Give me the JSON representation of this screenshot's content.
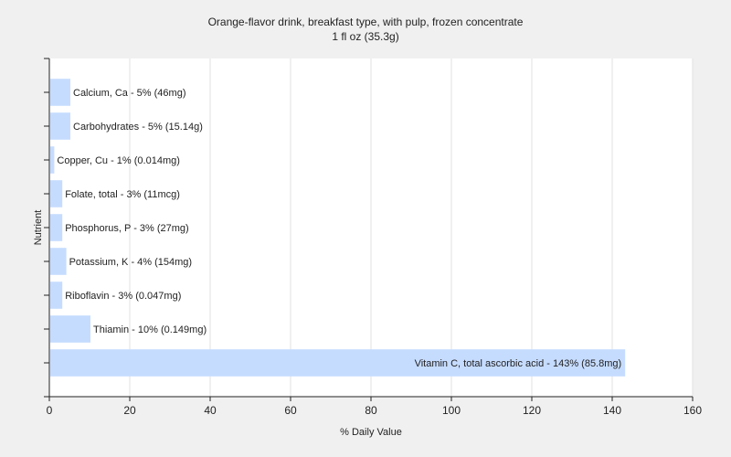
{
  "chart_data": {
    "type": "bar",
    "orientation": "horizontal",
    "title": "Orange-flavor drink, breakfast type, with pulp, frozen concentrate",
    "subtitle": "1 fl oz (35.3g)",
    "xlabel": "% Daily Value",
    "ylabel": "Nutrient",
    "xlim": [
      0,
      160
    ],
    "xticks": [
      0,
      20,
      40,
      60,
      80,
      100,
      120,
      140,
      160
    ],
    "grid": true,
    "legend": "none",
    "bar_color": "#c6dcff",
    "categories": [
      "Calcium, Ca",
      "Carbohydrates",
      "Copper, Cu",
      "Folate, total",
      "Phosphorus, P",
      "Potassium, K",
      "Riboflavin",
      "Thiamin",
      "Vitamin C, total ascorbic acid"
    ],
    "values": [
      5,
      5,
      1,
      3,
      3,
      4,
      3,
      10,
      143
    ],
    "labels": [
      "Calcium, Ca - 5% (46mg)",
      "Carbohydrates - 5% (15.14g)",
      "Copper, Cu - 1% (0.014mg)",
      "Folate, total - 3% (11mcg)",
      "Phosphorus, P - 3% (27mg)",
      "Potassium, K - 4% (154mg)",
      "Riboflavin - 3% (0.047mg)",
      "Thiamin - 10% (0.149mg)",
      "Vitamin C, total ascorbic acid - 143% (85.8mg)"
    ]
  }
}
